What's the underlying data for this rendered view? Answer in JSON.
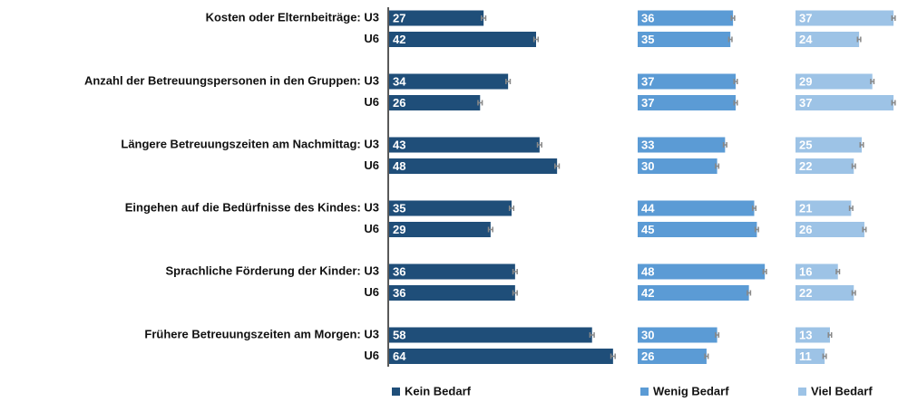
{
  "chart_data": {
    "type": "bar",
    "orientation": "horizontal",
    "categories": [
      "Kosten oder Elternbeiträge: U3",
      "U6",
      "Anzahl der Betreuungspersonen in den Gruppen: U3",
      "U6",
      "Längere Betreuungszeiten am Nachmittag: U3",
      "U6",
      "Eingehen auf die Bedürfnisse des Kindes: U3",
      "U6",
      "Sprachliche Förderung der Kinder: U3",
      "U6",
      "Frühere Betreuungszeiten am Morgen: U3",
      "U6"
    ],
    "series": [
      {
        "name": "Kein Bedarf",
        "color": "#1f4e79",
        "xlim": [
          0,
          70
        ],
        "values": [
          27,
          42,
          34,
          26,
          43,
          48,
          35,
          29,
          36,
          36,
          58,
          64
        ],
        "errors": [
          1,
          1,
          1,
          1,
          1,
          1,
          1,
          1,
          1,
          1,
          1,
          1
        ]
      },
      {
        "name": "Wenig Bedarf",
        "color": "#5b9bd5",
        "xlim": [
          0,
          50
        ],
        "values": [
          36,
          35,
          37,
          37,
          33,
          30,
          44,
          45,
          48,
          42,
          30,
          26
        ],
        "errors": [
          1,
          1,
          1,
          1,
          1,
          1,
          1,
          1,
          1,
          1,
          1,
          1
        ]
      },
      {
        "name": "Viel Bedarf",
        "color": "#9dc3e6",
        "xlim": [
          0,
          38
        ],
        "values": [
          37,
          24,
          29,
          37,
          25,
          22,
          21,
          26,
          16,
          22,
          13,
          11
        ],
        "errors": [
          1,
          1,
          1,
          1,
          1,
          1,
          1,
          1,
          1,
          1,
          1,
          1
        ]
      }
    ]
  }
}
